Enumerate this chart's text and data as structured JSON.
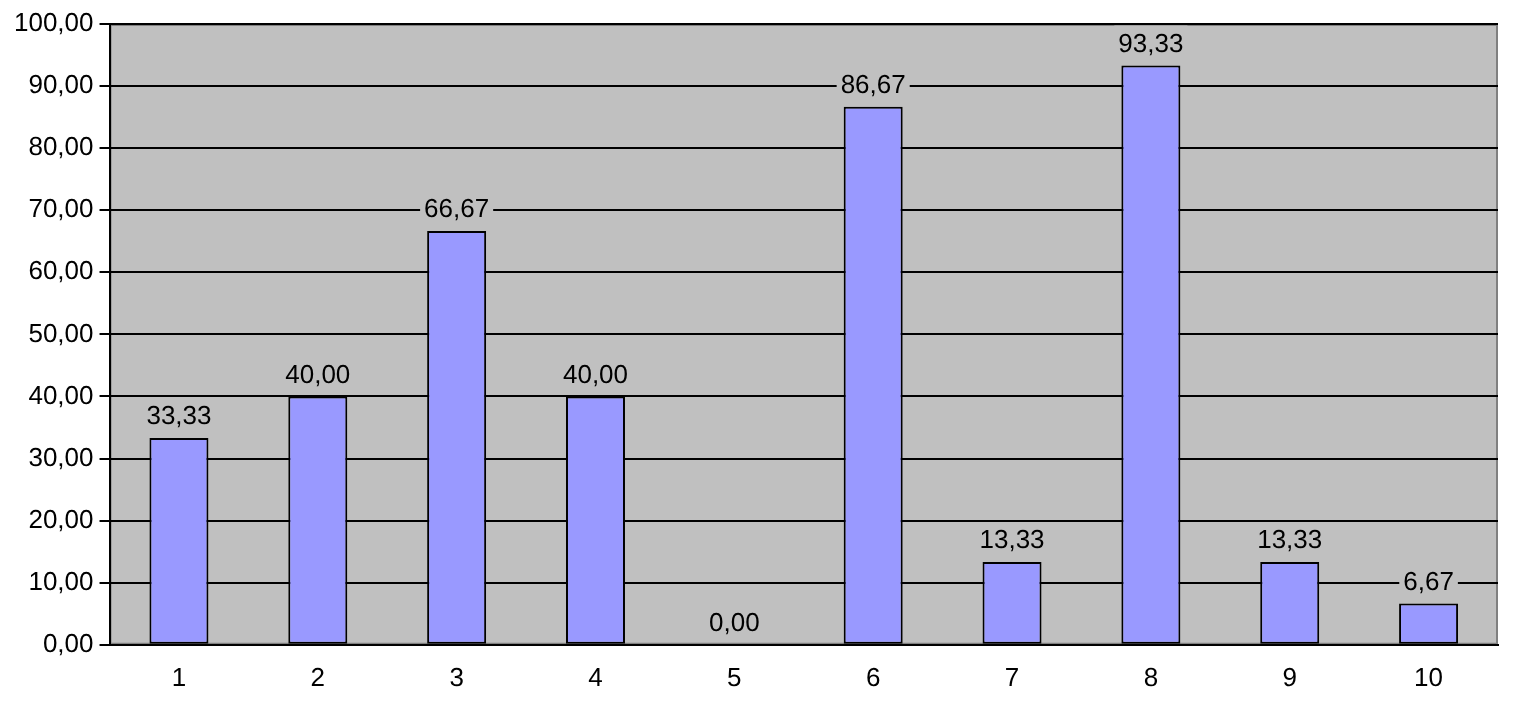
{
  "chart_data": {
    "type": "bar",
    "categories": [
      "1",
      "2",
      "3",
      "4",
      "5",
      "6",
      "7",
      "8",
      "9",
      "10"
    ],
    "values": [
      33.33,
      40.0,
      66.67,
      40.0,
      0.0,
      86.67,
      13.33,
      93.33,
      13.33,
      6.67
    ],
    "value_labels": [
      "33,33",
      "40,00",
      "66,67",
      "40,00",
      "0,00",
      "86,67",
      "13,33",
      "93,33",
      "13,33",
      "6,67"
    ],
    "color": "#9999ff",
    "ylim": [
      0,
      100
    ],
    "yticks": [
      {
        "value": 0,
        "label": "0,00"
      },
      {
        "value": 10,
        "label": "10,00"
      },
      {
        "value": 20,
        "label": "20,00"
      },
      {
        "value": 30,
        "label": "30,00"
      },
      {
        "value": 40,
        "label": "40,00"
      },
      {
        "value": 50,
        "label": "50,00"
      },
      {
        "value": 60,
        "label": "60,00"
      },
      {
        "value": 70,
        "label": "70,00"
      },
      {
        "value": 80,
        "label": "80,00"
      },
      {
        "value": 90,
        "label": "90,00"
      },
      {
        "value": 100,
        "label": "100,00"
      }
    ],
    "grid": "y",
    "legend": false
  }
}
